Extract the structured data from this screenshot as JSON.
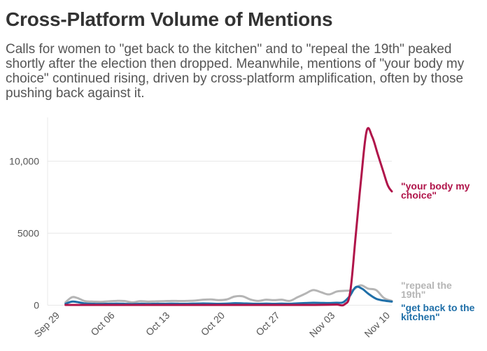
{
  "chart_data": {
    "type": "line",
    "title": "Cross-Platform Volume of Mentions",
    "subtitle": "Calls for women to \"get back to the kitchen\" and to \"repeal the 19th\" peaked shortly after the election then dropped. Meanwhile, mentions of \"your body my choice\" continued rising, driven by cross-platform amplification, often by those pushing back against it.",
    "xlabel": "",
    "ylabel": "",
    "ylim": [
      0,
      12500
    ],
    "yticks": [
      {
        "value": 0,
        "label": "0"
      },
      {
        "value": 5000,
        "label": "5000"
      },
      {
        "value": 10000,
        "label": "10,000"
      }
    ],
    "xticks": [
      {
        "day": 0,
        "label": "Sep 29"
      },
      {
        "day": 7,
        "label": "Oct 06"
      },
      {
        "day": 14,
        "label": "Oct 13"
      },
      {
        "day": 21,
        "label": "Oct 20"
      },
      {
        "day": 28,
        "label": "Oct 27"
      },
      {
        "day": 35,
        "label": "Nov 03"
      },
      {
        "day": 42,
        "label": "Nov 10"
      }
    ],
    "xlim": [
      0,
      42
    ],
    "series": [
      {
        "name": "\"repeal the 19th\"",
        "label_lines": [
          "\"repeal the",
          "19th\""
        ],
        "color": "#b5b5b5",
        "x": [
          0.5,
          1.3,
          2,
          3,
          4,
          5,
          6,
          7,
          8,
          9,
          10,
          11,
          12,
          13,
          14,
          15,
          16,
          17,
          18,
          19,
          20,
          21,
          22,
          23,
          24,
          25,
          26,
          27,
          28,
          29,
          30,
          31,
          32,
          33,
          34,
          35,
          36,
          37,
          38,
          39,
          40,
          41,
          42
        ],
        "values": [
          200,
          550,
          500,
          280,
          250,
          230,
          270,
          300,
          290,
          200,
          280,
          250,
          270,
          280,
          300,
          290,
          300,
          320,
          380,
          400,
          350,
          400,
          600,
          620,
          400,
          300,
          380,
          350,
          380,
          300,
          550,
          800,
          1050,
          900,
          750,
          950,
          1000,
          1050,
          1380,
          1150,
          1050,
          500,
          300
        ]
      },
      {
        "name": "\"get back to the kitchen\"",
        "label_lines": [
          "\"get back to the",
          "kitchen\""
        ],
        "color": "#1f6fa8",
        "x": [
          0.5,
          1.3,
          2,
          3,
          4,
          5,
          6,
          7,
          8,
          9,
          10,
          11,
          12,
          13,
          14,
          15,
          16,
          17,
          18,
          19,
          20,
          21,
          22,
          23,
          24,
          25,
          26,
          27,
          28,
          29,
          30,
          31,
          32,
          33,
          34,
          35,
          35.8,
          36.6,
          37.4,
          38.2,
          39,
          40,
          41,
          42
        ],
        "values": [
          100,
          250,
          220,
          120,
          100,
          90,
          100,
          110,
          100,
          80,
          100,
          90,
          100,
          100,
          110,
          100,
          100,
          110,
          120,
          110,
          100,
          110,
          140,
          130,
          110,
          100,
          110,
          100,
          110,
          100,
          130,
          150,
          170,
          160,
          150,
          170,
          200,
          600,
          1250,
          1150,
          800,
          450,
          320,
          250
        ]
      },
      {
        "name": "\"your body my choice\"",
        "label_lines": [
          "\"your body my",
          "choice\""
        ],
        "color": "#b0144a",
        "x": [
          0.5,
          2,
          4,
          6,
          8,
          10,
          12,
          14,
          16,
          18,
          20,
          22,
          24,
          26,
          28,
          30,
          32,
          34,
          35,
          36,
          36.7,
          37.4,
          38.1,
          38.8,
          39.5,
          40.2,
          40.9,
          41.5,
          42
        ],
        "values": [
          20,
          20,
          20,
          20,
          20,
          20,
          20,
          20,
          20,
          20,
          20,
          20,
          20,
          20,
          20,
          20,
          20,
          30,
          40,
          60,
          900,
          4800,
          8800,
          12100,
          11700,
          10500,
          9300,
          8300,
          7900
        ]
      }
    ]
  }
}
